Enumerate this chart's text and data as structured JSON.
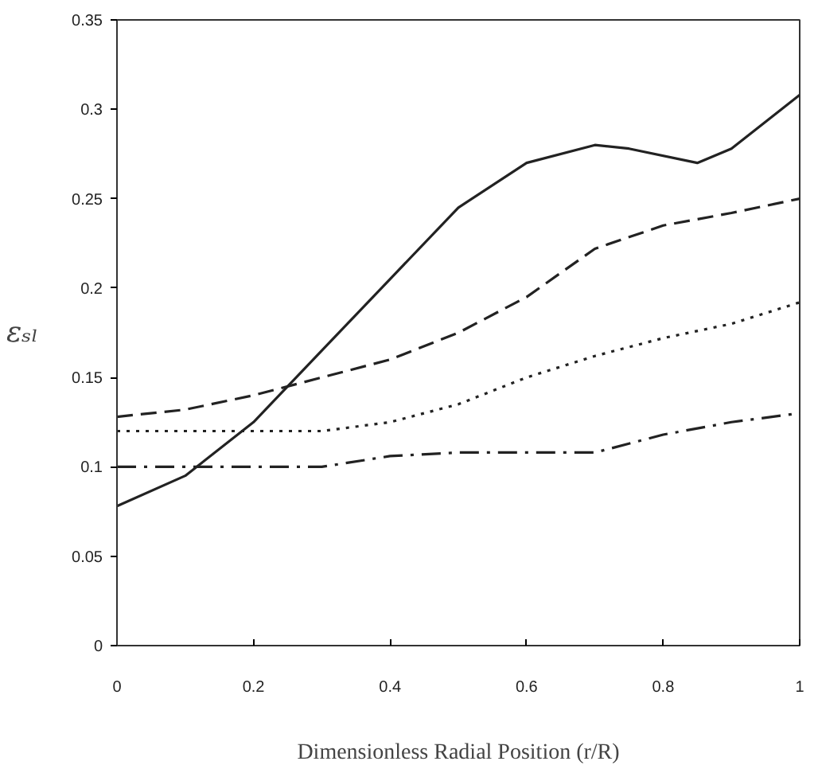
{
  "chart_data": {
    "type": "line",
    "xlabel": "Dimensionless Radial Position (r/R)",
    "ylabel": "εₛₗ",
    "xlim": [
      0,
      1
    ],
    "ylim": [
      0,
      0.35
    ],
    "xticks": [
      0,
      0.2,
      0.4,
      0.6,
      0.8,
      1
    ],
    "yticks": [
      0,
      0.05,
      0.1,
      0.15,
      0.2,
      0.25,
      0.3,
      0.35
    ],
    "grid": false,
    "marker": "none",
    "series": [
      {
        "color": "#222222",
        "line_style": "solid",
        "x": [
          0,
          0.1,
          0.2,
          0.3,
          0.4,
          0.5,
          0.6,
          0.7,
          0.75,
          0.85,
          0.9,
          1
        ],
        "values": [
          0.078,
          0.095,
          0.125,
          0.165,
          0.205,
          0.245,
          0.27,
          0.28,
          0.278,
          0.27,
          0.278,
          0.308
        ]
      },
      {
        "color": "#222222",
        "line_style": "dashed",
        "x": [
          0,
          0.1,
          0.2,
          0.3,
          0.4,
          0.5,
          0.6,
          0.7,
          0.8,
          0.9,
          1
        ],
        "values": [
          0.128,
          0.132,
          0.14,
          0.15,
          0.16,
          0.175,
          0.195,
          0.222,
          0.235,
          0.242,
          0.25
        ]
      },
      {
        "color": "#222222",
        "line_style": "dotted",
        "x": [
          0,
          0.2,
          0.3,
          0.4,
          0.5,
          0.6,
          0.7,
          0.8,
          0.9,
          1
        ],
        "values": [
          0.12,
          0.12,
          0.12,
          0.125,
          0.135,
          0.15,
          0.162,
          0.172,
          0.18,
          0.192
        ]
      },
      {
        "color": "#222222",
        "line_style": "dashdot",
        "x": [
          0,
          0.3,
          0.4,
          0.5,
          0.7,
          0.8,
          0.9,
          1
        ],
        "values": [
          0.1,
          0.1,
          0.106,
          0.108,
          0.108,
          0.118,
          0.125,
          0.13
        ]
      }
    ]
  }
}
